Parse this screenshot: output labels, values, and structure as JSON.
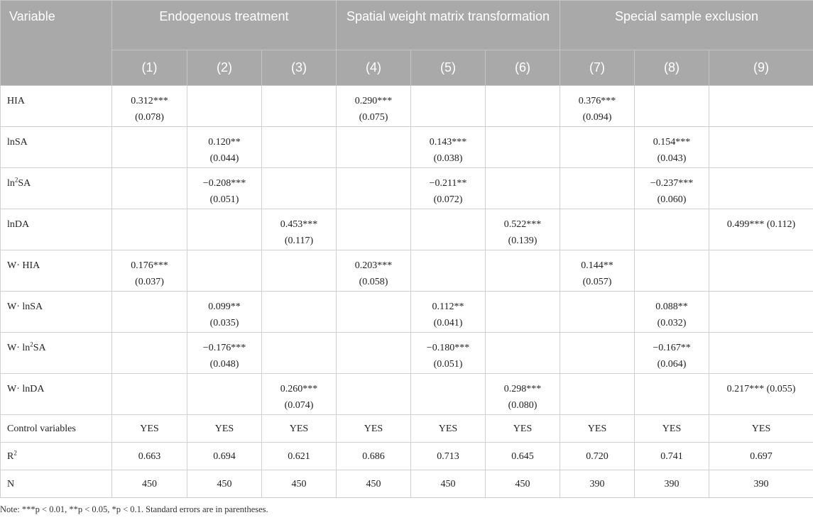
{
  "table": {
    "variable_header": "Variable",
    "groups": [
      {
        "label": "Endogenous treatment",
        "span": 3
      },
      {
        "label": "Spatial weight matrix transformation",
        "span": 3
      },
      {
        "label": "Special sample exclusion",
        "span": 3
      }
    ],
    "columns": [
      "(1)",
      "(2)",
      "(3)",
      "(4)",
      "(5)",
      "(6)",
      "(7)",
      "(8)",
      "(9)"
    ],
    "rows": [
      {
        "label": "HIA",
        "cells": [
          "0.312***|(0.078)",
          "",
          "",
          "0.290***|(0.075)",
          "",
          "",
          "0.376***|(0.094)",
          "",
          ""
        ]
      },
      {
        "label": "lnSA",
        "cells": [
          "",
          "0.120**|(0.044)",
          "",
          "",
          "0.143***|(0.038)",
          "",
          "",
          "0.154***|(0.043)",
          ""
        ]
      },
      {
        "label": "ln2SA",
        "cells": [
          "",
          "−0.208***|(0.051)",
          "",
          "",
          "−0.211**|(0.072)",
          "",
          "",
          "−0.237***|(0.060)",
          ""
        ]
      },
      {
        "label": "lnDA",
        "cells": [
          "",
          "",
          "0.453***|(0.117)",
          "",
          "",
          "0.522***|(0.139)",
          "",
          "",
          "0.499*** (0.112)"
        ]
      },
      {
        "label": "W· HIA",
        "cells": [
          "0.176***|(0.037)",
          "",
          "",
          "0.203***|(0.058)",
          "",
          "",
          "0.144**|(0.057)",
          "",
          ""
        ]
      },
      {
        "label": "W· lnSA",
        "cells": [
          "",
          "0.099**|(0.035)",
          "",
          "",
          "0.112**|(0.041)",
          "",
          "",
          "0.088**|(0.032)",
          ""
        ]
      },
      {
        "label": "W· ln2SA",
        "cells": [
          "",
          "−0.176***|(0.048)",
          "",
          "",
          "−0.180***|(0.051)",
          "",
          "",
          "−0.167**|(0.064)",
          ""
        ]
      },
      {
        "label": "W· lnDA",
        "cells": [
          "",
          "",
          "0.260***|(0.074)",
          "",
          "",
          "0.298***|(0.080)",
          "",
          "",
          "0.217*** (0.055)"
        ]
      },
      {
        "label": "Control variables",
        "short": true,
        "cells": [
          "YES",
          "YES",
          "YES",
          "YES",
          "YES",
          "YES",
          "YES",
          "YES",
          "YES"
        ]
      },
      {
        "label": "R2",
        "short": true,
        "cells": [
          "0.663",
          "0.694",
          "0.621",
          "0.686",
          "0.713",
          "0.645",
          "0.720",
          "0.741",
          "0.697"
        ]
      },
      {
        "label": "N",
        "short": true,
        "cells": [
          "450",
          "450",
          "450",
          "450",
          "450",
          "450",
          "390",
          "390",
          "390"
        ]
      }
    ]
  },
  "note": "Note: ***p < 0.01, **p < 0.05, *p < 0.1. Standard errors are in parentheses."
}
